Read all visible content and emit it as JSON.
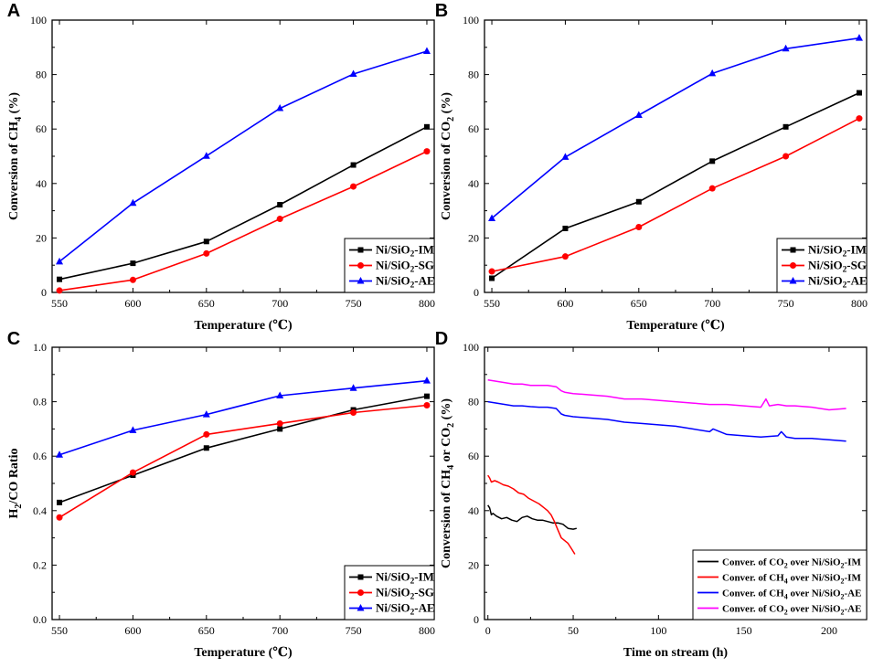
{
  "chart_data": [
    {
      "panel": "A",
      "type": "line",
      "xlabel": "Temperature (℃)",
      "ylabel": "Conversion of CH4 (%)",
      "ylabel_parts": [
        [
          "Conversion of CH",
          false
        ],
        [
          "4",
          true
        ],
        [
          " (%)",
          false
        ]
      ],
      "xlim": [
        545,
        805
      ],
      "ylim": [
        0,
        100
      ],
      "xticks": [
        550,
        600,
        650,
        700,
        750,
        800
      ],
      "yticks": [
        0,
        20,
        40,
        60,
        80,
        100
      ],
      "legend_position": "bottom-right",
      "series": [
        {
          "name": "Ni/SiO2-IM",
          "name_parts": [
            [
              "Ni/SiO",
              false
            ],
            [
              "2",
              true
            ],
            [
              "-IM",
              false
            ]
          ],
          "color": "#000000",
          "marker": "square",
          "x": [
            550,
            600,
            650,
            700,
            750,
            800
          ],
          "y": [
            4.8,
            10.7,
            18.7,
            32.2,
            46.8,
            60.8
          ]
        },
        {
          "name": "Ni/SiO2-SG",
          "name_parts": [
            [
              "Ni/SiO",
              false
            ],
            [
              "2",
              true
            ],
            [
              "-SG",
              false
            ]
          ],
          "color": "#ff0000",
          "marker": "circle",
          "x": [
            550,
            600,
            650,
            700,
            750,
            800
          ],
          "y": [
            0.7,
            4.6,
            14.3,
            27.0,
            38.9,
            51.8
          ]
        },
        {
          "name": "Ni/SiO2-AE",
          "name_parts": [
            [
              "Ni/SiO",
              false
            ],
            [
              "2",
              true
            ],
            [
              "-AE",
              false
            ]
          ],
          "color": "#0000ff",
          "marker": "triangle",
          "x": [
            550,
            600,
            650,
            700,
            750,
            800
          ],
          "y": [
            11.3,
            32.8,
            50.1,
            67.6,
            80.2,
            88.6
          ]
        }
      ]
    },
    {
      "panel": "B",
      "type": "line",
      "xlabel": "Temperature (℃)",
      "ylabel": "Conversion of CO2 (%)",
      "ylabel_parts": [
        [
          "Conversion of CO",
          false
        ],
        [
          "2",
          true
        ],
        [
          " (%)",
          false
        ]
      ],
      "xlim": [
        545,
        805
      ],
      "ylim": [
        0,
        100
      ],
      "xticks": [
        550,
        600,
        650,
        700,
        750,
        800
      ],
      "yticks": [
        0,
        20,
        40,
        60,
        80,
        100
      ],
      "legend_position": "bottom-right",
      "series": [
        {
          "name": "Ni/SiO2-IM",
          "name_parts": [
            [
              "Ni/SiO",
              false
            ],
            [
              "2",
              true
            ],
            [
              "-IM",
              false
            ]
          ],
          "color": "#000000",
          "marker": "square",
          "x": [
            550,
            600,
            650,
            700,
            750,
            800
          ],
          "y": [
            5.2,
            23.5,
            33.3,
            48.2,
            60.8,
            73.3
          ]
        },
        {
          "name": "Ni/SiO2-SG",
          "name_parts": [
            [
              "Ni/SiO",
              false
            ],
            [
              "2",
              true
            ],
            [
              "-SG",
              false
            ]
          ],
          "color": "#ff0000",
          "marker": "circle",
          "x": [
            550,
            600,
            650,
            700,
            750,
            800
          ],
          "y": [
            7.7,
            13.2,
            24.0,
            38.2,
            50.0,
            63.9
          ]
        },
        {
          "name": "Ni/SiO2-AE",
          "name_parts": [
            [
              "Ni/SiO",
              false
            ],
            [
              "2",
              true
            ],
            [
              "-AE",
              false
            ]
          ],
          "color": "#0000ff",
          "marker": "triangle",
          "x": [
            550,
            600,
            650,
            700,
            750,
            800
          ],
          "y": [
            27.2,
            49.7,
            65.1,
            80.4,
            89.5,
            93.4
          ]
        }
      ]
    },
    {
      "panel": "C",
      "type": "line",
      "xlabel": "Temperature (℃)",
      "ylabel": "H2/CO Ratio",
      "ylabel_parts": [
        [
          "H",
          false
        ],
        [
          "2",
          true
        ],
        [
          "/CO Ratio",
          false
        ]
      ],
      "xlim": [
        545,
        805
      ],
      "ylim": [
        0.0,
        1.0
      ],
      "xticks": [
        550,
        600,
        650,
        700,
        750,
        800
      ],
      "yticks": [
        0.0,
        0.2,
        0.4,
        0.6,
        0.8,
        1.0
      ],
      "legend_position": "bottom-right",
      "series": [
        {
          "name": "Ni/SiO2-IM",
          "name_parts": [
            [
              "Ni/SiO",
              false
            ],
            [
              "2",
              true
            ],
            [
              "-IM",
              false
            ]
          ],
          "color": "#000000",
          "marker": "square",
          "x": [
            550,
            600,
            650,
            700,
            750,
            800
          ],
          "y": [
            0.43,
            0.53,
            0.63,
            0.7,
            0.77,
            0.82
          ]
        },
        {
          "name": "Ni/SiO2-SG",
          "name_parts": [
            [
              "Ni/SiO",
              false
            ],
            [
              "2",
              true
            ],
            [
              "-SG",
              false
            ]
          ],
          "color": "#ff0000",
          "marker": "circle",
          "x": [
            550,
            600,
            650,
            700,
            750,
            800
          ],
          "y": [
            0.375,
            0.54,
            0.68,
            0.72,
            0.76,
            0.787
          ]
        },
        {
          "name": "Ni/SiO2-AE",
          "name_parts": [
            [
              "Ni/SiO",
              false
            ],
            [
              "2",
              true
            ],
            [
              "-AE",
              false
            ]
          ],
          "color": "#0000ff",
          "marker": "triangle",
          "x": [
            550,
            600,
            650,
            700,
            750,
            800
          ],
          "y": [
            0.605,
            0.695,
            0.753,
            0.822,
            0.85,
            0.877
          ]
        }
      ]
    },
    {
      "panel": "D",
      "type": "line",
      "xlabel": "Time on stream (h)",
      "ylabel": "Conversion of CH4 or CO2 (%)",
      "ylabel_parts": [
        [
          "Conversion of CH",
          false
        ],
        [
          "4",
          true
        ],
        [
          " or CO",
          false
        ],
        [
          "2",
          true
        ],
        [
          " (%)",
          false
        ]
      ],
      "xlim": [
        -2,
        222
      ],
      "ylim": [
        0,
        100
      ],
      "xticks": [
        0,
        50,
        100,
        150,
        200
      ],
      "yticks": [
        0,
        20,
        40,
        60,
        80,
        100
      ],
      "legend_position": "bottom-right",
      "series": [
        {
          "name": "Conver. of CO2 over Ni/SiO2-IM",
          "name_parts": [
            [
              "Conver. of CO",
              false
            ],
            [
              "2",
              true
            ],
            [
              " over Ni/SiO",
              false
            ],
            [
              "2",
              true
            ],
            [
              "-IM",
              false
            ]
          ],
          "color": "#000000",
          "x": [
            0,
            1,
            2,
            3,
            4,
            5,
            8,
            11,
            14,
            17,
            20,
            23,
            26,
            29,
            32,
            35,
            38,
            41,
            44,
            47,
            50,
            52
          ],
          "y": [
            42,
            41,
            38.5,
            39,
            38.5,
            38,
            37,
            37.5,
            36.5,
            36,
            37.5,
            38,
            37,
            36.5,
            36.5,
            36,
            35.5,
            35.5,
            35,
            33.5,
            33.2,
            33.5
          ]
        },
        {
          "name": "Conver. of CH4 over Ni/SiO2-IM",
          "name_parts": [
            [
              "Conver. of CH",
              false
            ],
            [
              "4",
              true
            ],
            [
              " over Ni/SiO",
              false
            ],
            [
              "2",
              true
            ],
            [
              "-IM",
              false
            ]
          ],
          "color": "#ff0000",
          "x": [
            0,
            1,
            2,
            4,
            6,
            9,
            12,
            15,
            18,
            21,
            24,
            27,
            30,
            33,
            35,
            37,
            39,
            41,
            43,
            45,
            47,
            49,
            51
          ],
          "y": [
            53,
            52,
            50.5,
            51,
            50.5,
            49.5,
            49,
            48,
            46.5,
            46,
            44.5,
            43.5,
            42.5,
            41,
            40,
            38.5,
            36,
            33,
            30,
            29,
            28,
            26,
            24
          ]
        },
        {
          "name": "Conver. of CH4 over Ni/SiO2-AE",
          "name_parts": [
            [
              "Conver. of CH",
              false
            ],
            [
              "4",
              true
            ],
            [
              " over Ni/SiO",
              false
            ],
            [
              "2",
              true
            ],
            [
              "-AE",
              false
            ]
          ],
          "color": "#0000ff",
          "x": [
            0,
            5,
            10,
            15,
            20,
            25,
            30,
            35,
            40,
            43,
            45,
            50,
            60,
            70,
            80,
            90,
            100,
            110,
            120,
            130,
            132,
            140,
            150,
            160,
            170,
            172,
            175,
            180,
            190,
            200,
            210
          ],
          "y": [
            80,
            79.5,
            79,
            78.5,
            78.5,
            78.2,
            78,
            78,
            77.5,
            75.5,
            75,
            74.5,
            74,
            73.5,
            72.5,
            72,
            71.5,
            71,
            70,
            69,
            70,
            68,
            67.5,
            67,
            67.5,
            69,
            67,
            66.5,
            66.5,
            66,
            65.5
          ]
        },
        {
          "name": "Conver. of CO2 over Ni/SiO2-AE",
          "name_parts": [
            [
              "Conver. of CO",
              false
            ],
            [
              "2",
              true
            ],
            [
              " over Ni/SiO",
              false
            ],
            [
              "2",
              true
            ],
            [
              "-AE",
              false
            ]
          ],
          "color": "#ff00ff",
          "x": [
            0,
            5,
            10,
            15,
            20,
            25,
            30,
            35,
            40,
            43,
            45,
            50,
            60,
            70,
            80,
            90,
            100,
            110,
            120,
            130,
            140,
            150,
            160,
            163,
            165,
            170,
            175,
            180,
            190,
            200,
            210
          ],
          "y": [
            88,
            87.5,
            87,
            86.5,
            86.5,
            86,
            86,
            86,
            85.5,
            84,
            83.5,
            83,
            82.5,
            82,
            81,
            81,
            80.5,
            80,
            79.5,
            79,
            79,
            78.5,
            78,
            81,
            78.5,
            79,
            78.5,
            78.5,
            78,
            77,
            77.5
          ]
        }
      ]
    }
  ],
  "panel_labels": [
    "A",
    "B",
    "C",
    "D"
  ]
}
